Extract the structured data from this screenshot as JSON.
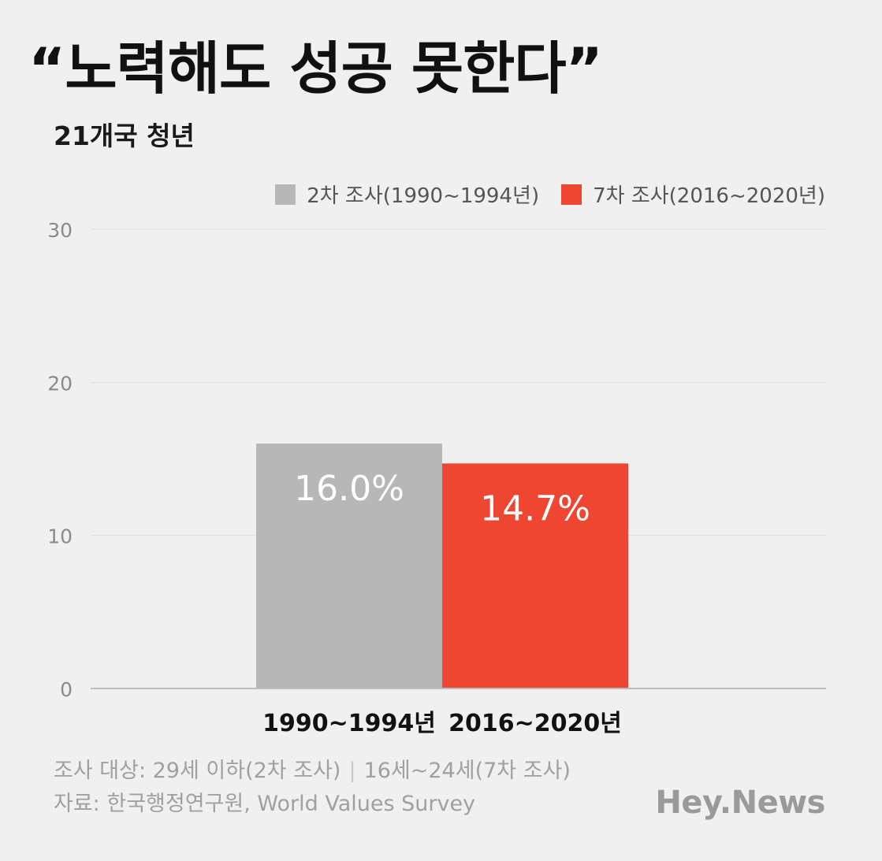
{
  "header": {
    "title": "“노력해도 성공 못한다”",
    "subtitle": "21개국 청년"
  },
  "legend": [
    {
      "label": "2차 조사(1990~1994년)",
      "color": "#b7b7b7"
    },
    {
      "label": "7차 조사(2016~2020년)",
      "color": "#ef4631"
    }
  ],
  "chart_data": {
    "type": "bar",
    "title": "“노력해도 성공 못한다”",
    "subtitle": "21개국 청년",
    "categories": [
      "1990~1994년",
      "2016~2020년"
    ],
    "values": [
      16.0,
      14.7
    ],
    "value_labels": [
      "16.0%",
      "14.7%"
    ],
    "colors": [
      "#b7b7b7",
      "#ef4631"
    ],
    "series_names": [
      "2차 조사(1990~1994년)",
      "7차 조사(2016~2020년)"
    ],
    "ylim": [
      0,
      30
    ],
    "yticks": [
      0,
      10,
      20,
      30
    ],
    "grid": true,
    "legend_position": "top-right",
    "xlabel": "",
    "ylabel": ""
  },
  "notes": {
    "target_prefix": "조사 대상: 29세 이하(2차 조사)",
    "separator": "|",
    "target_suffix": "16세~24세(7차 조사)",
    "source": "자료: 한국행정연구원, World Values Survey"
  },
  "brand": "Hey.News"
}
